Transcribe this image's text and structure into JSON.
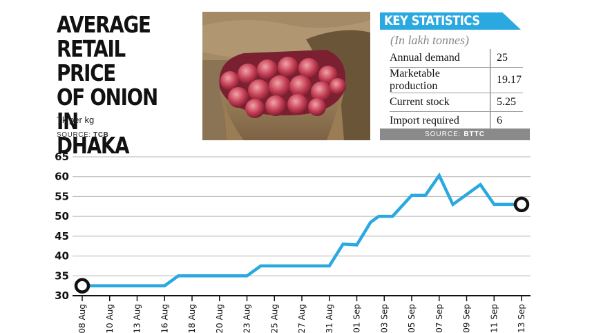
{
  "title": "AVERAGE\nRETAIL PRICE\nOF ONION IN\nDHAKA",
  "unit": "Tk per kg",
  "source_label": "SOURCE:",
  "source_value": "TCB",
  "key_stats": {
    "title": "KEY STATISTICS",
    "subtitle": "(In lakh tonnes)",
    "rows": [
      {
        "label": "Annual demand",
        "value": "25"
      },
      {
        "label": "Marketable production",
        "value": "19.17"
      },
      {
        "label": "Current stock",
        "value": "5.25"
      },
      {
        "label": "Import required",
        "value": "6"
      }
    ],
    "source_label": "SOURCE:",
    "source_value": "BTTC"
  },
  "colors": {
    "line": "#2aa8e0",
    "accent": "#2aa8e0",
    "grid": "#b5b5b5",
    "source_bar": "#8a8a8a"
  },
  "chart_data": {
    "type": "line",
    "title": "AVERAGE RETAIL PRICE OF ONION IN DHAKA",
    "ylabel": "Tk per kg",
    "ylim": [
      30,
      65
    ],
    "yticks": [
      30,
      35,
      40,
      45,
      50,
      55,
      60,
      65
    ],
    "grid": true,
    "xtick_labels": [
      "08 Aug",
      "10 Aug",
      "13 Aug",
      "16 Aug",
      "18 Aug",
      "20 Aug",
      "23 Aug",
      "25 Aug",
      "27 Aug",
      "31 Aug",
      "01 Sep",
      "03 Sep",
      "05 Sep",
      "07 Sep",
      "09 Sep",
      "11 Sep",
      "13 Sep"
    ],
    "series": [
      {
        "x": [
          0,
          1,
          2,
          3,
          3.5,
          4,
          5,
          6,
          6.5,
          7,
          8,
          9,
          9.5,
          10,
          10.5,
          10.8,
          11.3,
          12,
          12.5,
          13,
          13.5,
          14,
          14.5,
          15,
          15.5,
          16
        ],
        "values": [
          32.5,
          32.5,
          32.5,
          32.5,
          35,
          35,
          35,
          35,
          37.5,
          37.5,
          37.5,
          37.5,
          43,
          42.8,
          48.5,
          50,
          50,
          55.3,
          55.3,
          60.3,
          53,
          55.5,
          58,
          53,
          53,
          53
        ]
      }
    ]
  }
}
